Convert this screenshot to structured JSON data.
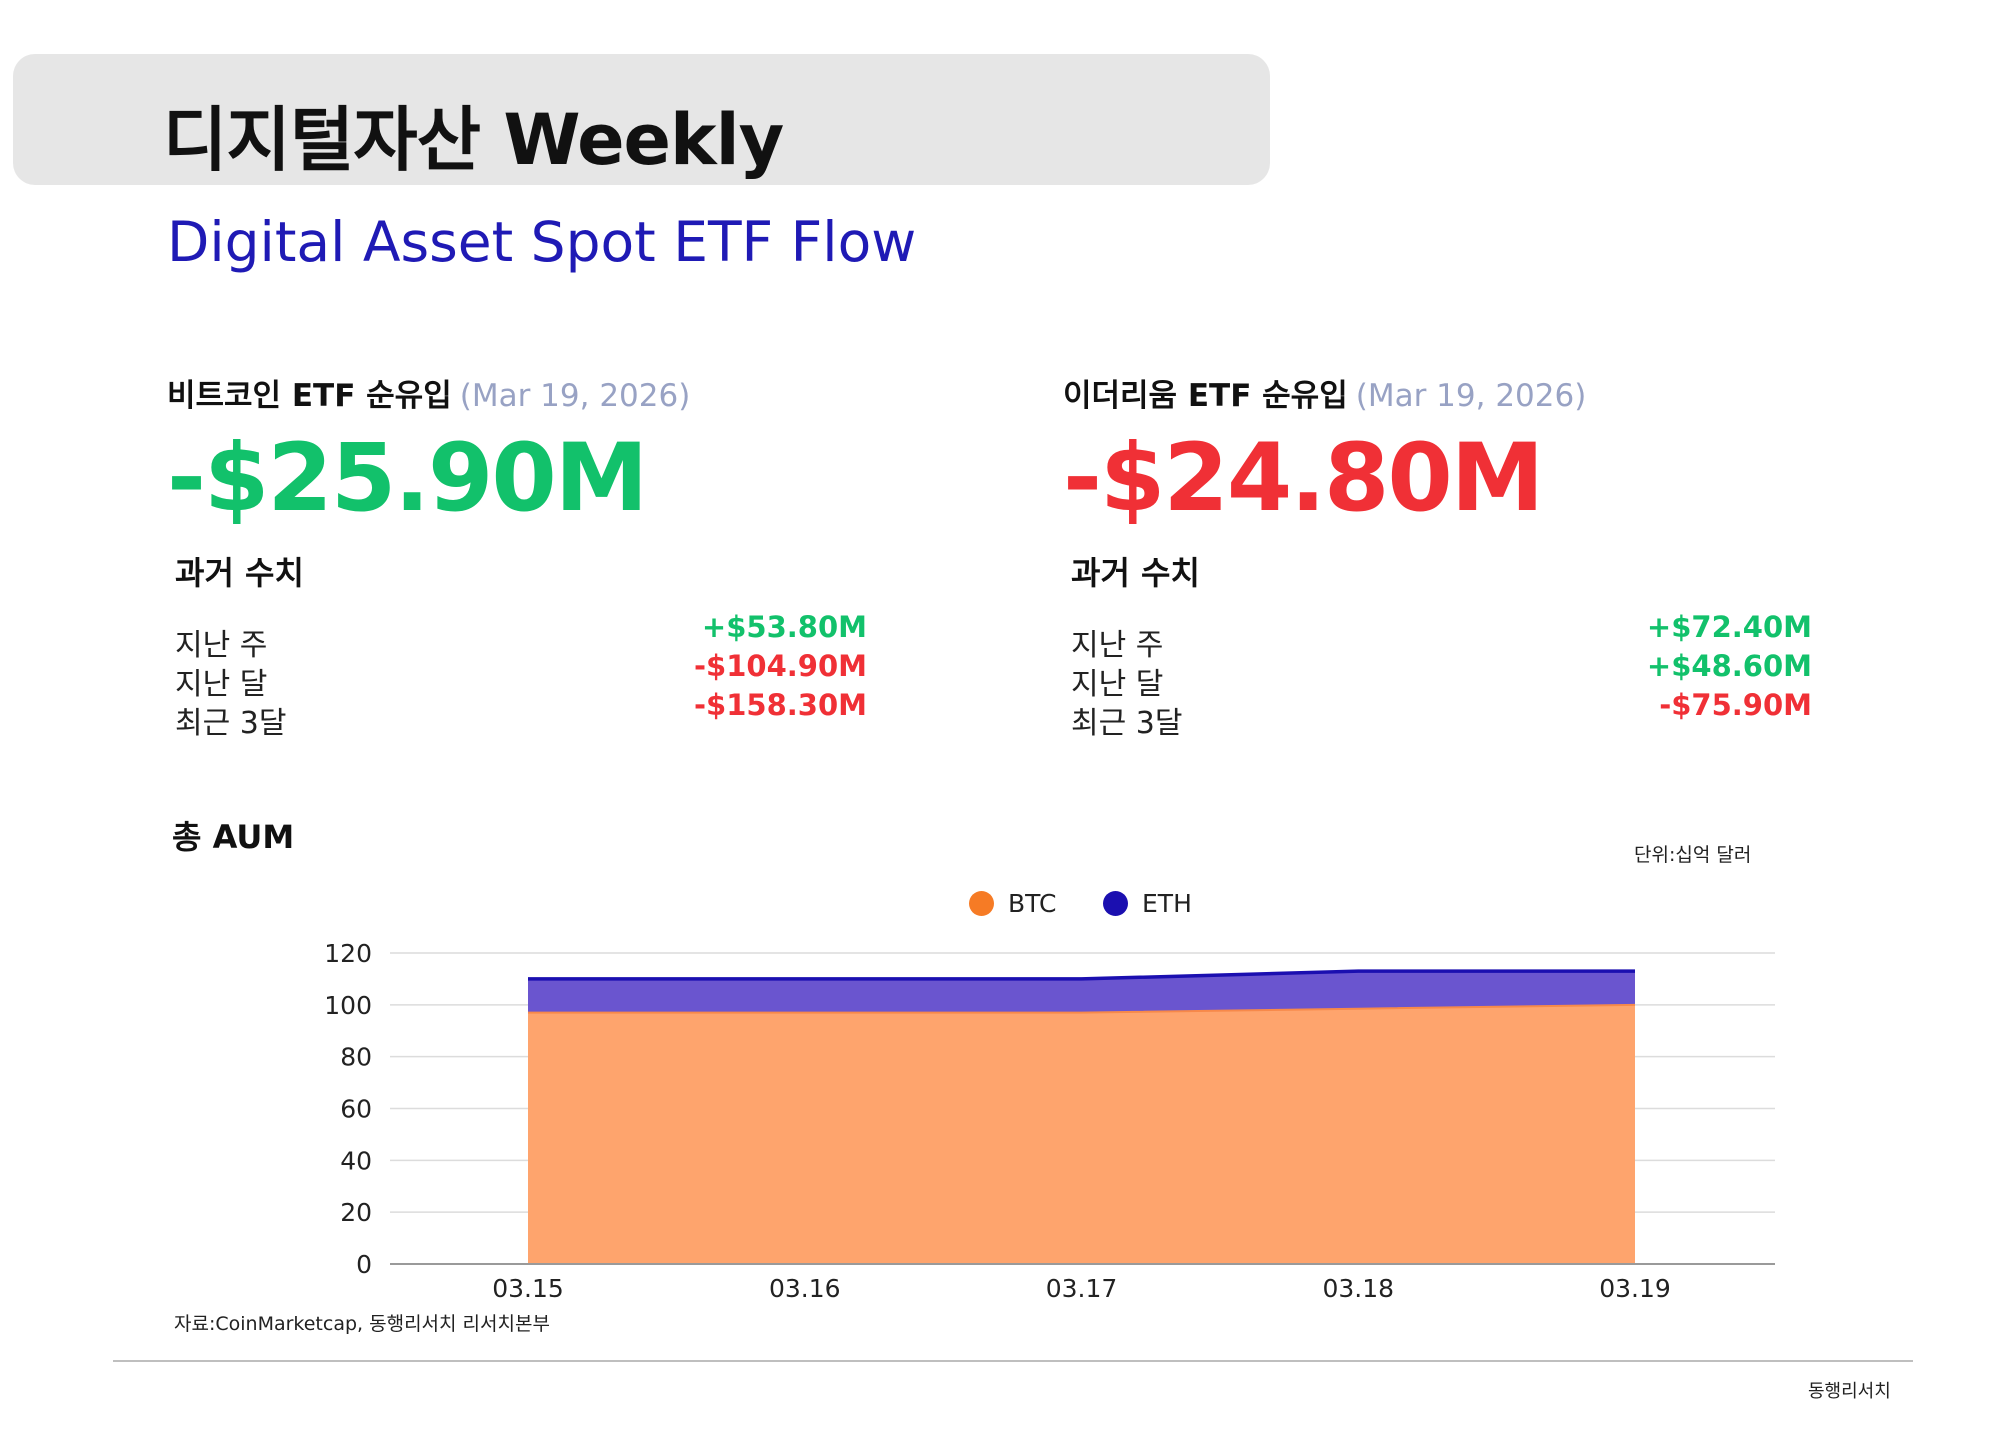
{
  "header": {
    "title": "디지털자산 Weekly",
    "subtitle": "Digital Asset Spot ETF Flow"
  },
  "btc_panel": {
    "label": "비트코인 ETF 순유입",
    "date": "(Mar 19, 2026)",
    "value": "-$25.90M",
    "value_color": "#12c16b",
    "history_title": "과거 수치",
    "rows": [
      {
        "label": "지난 주",
        "value": "+$53.80M",
        "color": "#12c16b"
      },
      {
        "label": "지난 달",
        "value": "-$104.90M",
        "color": "#f03036"
      },
      {
        "label": "최근 3달",
        "value": "-$158.30M",
        "color": "#f03036"
      }
    ]
  },
  "eth_panel": {
    "label": "이더리움 ETF 순유입",
    "date": "(Mar 19, 2026)",
    "value": "-$24.80M",
    "value_color": "#f03036",
    "history_title": "과거 수치",
    "rows": [
      {
        "label": "지난 주",
        "value": "+$72.40M",
        "color": "#12c16b"
      },
      {
        "label": "지난 달",
        "value": "+$48.60M",
        "color": "#12c16b"
      },
      {
        "label": "최근 3달",
        "value": "-$75.90M",
        "color": "#f03036"
      }
    ]
  },
  "aum": {
    "title": "총 AUM",
    "unit": "단위:십억 달러"
  },
  "chart_data": {
    "type": "area",
    "stacked": true,
    "title": "",
    "xlabel": "",
    "ylabel": "",
    "x": [
      "03.15",
      "03.16",
      "03.17",
      "03.18",
      "03.19"
    ],
    "ylim": [
      0,
      120
    ],
    "yticks": [
      0,
      20,
      40,
      60,
      80,
      100,
      120
    ],
    "grid": true,
    "legend_position": "top-center",
    "series": [
      {
        "name": "BTC",
        "values": [
          97,
          97,
          97,
          98.5,
          100
        ],
        "color": "#fea46d",
        "legend_color": "#f67b25"
      },
      {
        "name": "ETH",
        "values": [
          13,
          13,
          13,
          14.5,
          13
        ],
        "color": "#6a55cf",
        "legend_color": "#1b0fb0",
        "line_color": "#1b0fb0"
      }
    ]
  },
  "footer": {
    "source": "자료:CoinMarketcap, 동행리서치 리서치본부",
    "brand": "동행리서치"
  }
}
